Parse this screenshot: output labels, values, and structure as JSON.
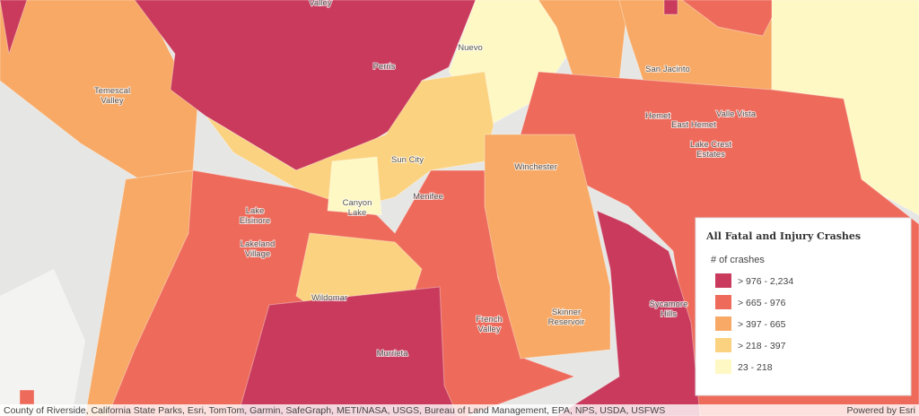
{
  "map": {
    "places": [
      {
        "lines": [
          "Valley"
        ]
      },
      {
        "lines": [
          "Nuevo"
        ]
      },
      {
        "lines": [
          "Perris"
        ]
      },
      {
        "lines": [
          "Temescal",
          "Valley"
        ]
      },
      {
        "lines": [
          "San Jacinto"
        ]
      },
      {
        "lines": [
          "Hemet"
        ]
      },
      {
        "lines": [
          "East Hemet"
        ]
      },
      {
        "lines": [
          "Valle Vista"
        ]
      },
      {
        "lines": [
          "Lake Crest",
          "Estates"
        ]
      },
      {
        "lines": [
          "Sun City"
        ]
      },
      {
        "lines": [
          "Winchester"
        ]
      },
      {
        "lines": [
          "Menifee"
        ]
      },
      {
        "lines": [
          "Canyon",
          "Lake"
        ]
      },
      {
        "lines": [
          "Lake",
          "Elsinore"
        ]
      },
      {
        "lines": [
          "Lakeland",
          "Village"
        ]
      },
      {
        "lines": [
          "Wildomar"
        ]
      },
      {
        "lines": [
          "French",
          "Valley"
        ]
      },
      {
        "lines": [
          "Skinner",
          "Reservoir"
        ]
      },
      {
        "lines": [
          "Sycamore",
          "Hills"
        ]
      },
      {
        "lines": [
          "Murrieta"
        ]
      }
    ]
  },
  "legend": {
    "title": "All Fatal and Injury Crashes",
    "subtitle": "# of crashes",
    "classes": [
      {
        "label": "> 976 - 2,234",
        "color": "#c93a5c"
      },
      {
        "label": "> 665 - 976",
        "color": "#ee6b5b"
      },
      {
        "label": "> 397 - 665",
        "color": "#f7a965"
      },
      {
        "label": "> 218 - 397",
        "color": "#fbd27f"
      },
      {
        "label": "23 - 218",
        "color": "#fef8c4"
      }
    ]
  },
  "attribution": "County of Riverside, California State Parks, Esri, TomTom, Garmin, SafeGraph, METI/NASA, USGS, Bureau of Land Management, EPA, NPS, USDA, USFWS",
  "powered_by": "Powered by Esri"
}
